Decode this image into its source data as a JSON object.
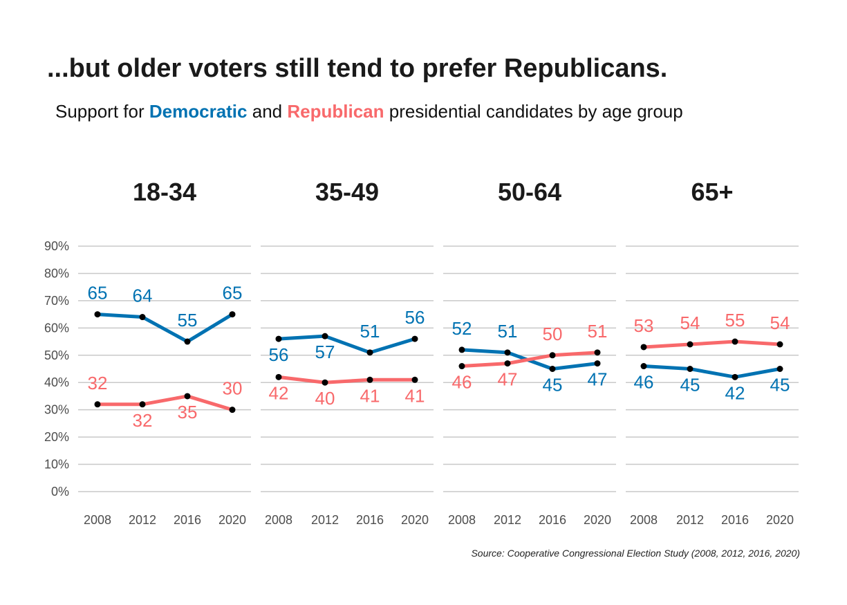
{
  "title": "...but older voters still tend to prefer Republicans.",
  "subtitle": {
    "prefix": "Support for",
    "dem": "Democratic",
    "middle": "and",
    "rep": "Republican",
    "suffix": "presidential candidates by age group"
  },
  "source": "Source: Cooperative Congressional Election Study (2008, 2012, 2016, 2020)",
  "colors": {
    "dem": "#0072B2",
    "rep": "#F8696B",
    "point": "#000000",
    "grid": "#c8c8c8"
  },
  "chart_data": {
    "type": "line",
    "facets": [
      "18-34",
      "35-49",
      "50-64",
      "65+"
    ],
    "x": [
      "2008",
      "2012",
      "2016",
      "2020"
    ],
    "y_ticks": [
      "0%",
      "10%",
      "20%",
      "30%",
      "40%",
      "50%",
      "60%",
      "70%",
      "80%",
      "90%"
    ],
    "ylim": [
      0,
      90
    ],
    "grid": true,
    "series": [
      {
        "name": "Democratic",
        "color": "#0072B2",
        "values": [
          [
            65,
            64,
            55,
            65
          ],
          [
            56,
            57,
            51,
            56
          ],
          [
            52,
            51,
            45,
            47
          ],
          [
            46,
            45,
            42,
            45
          ]
        ]
      },
      {
        "name": "Republican",
        "color": "#F8696B",
        "values": [
          [
            32,
            32,
            35,
            30
          ],
          [
            42,
            40,
            41,
            41
          ],
          [
            46,
            47,
            50,
            51
          ],
          [
            53,
            54,
            55,
            54
          ]
        ]
      }
    ]
  }
}
